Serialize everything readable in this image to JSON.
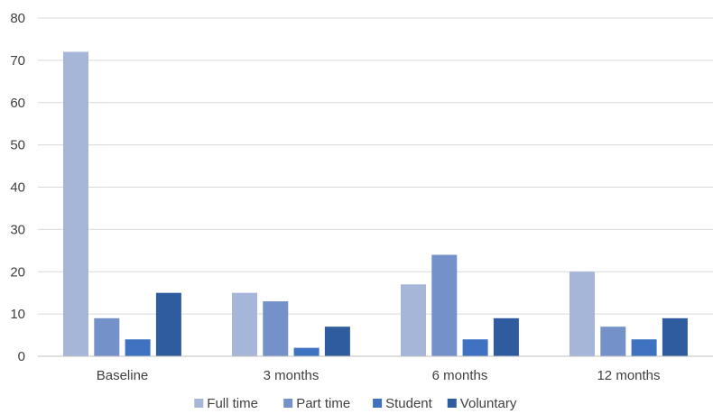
{
  "chart_data": {
    "type": "bar",
    "categories": [
      "Baseline",
      "3 months",
      "6 months",
      "12 months"
    ],
    "series": [
      {
        "name": "Full time",
        "values": [
          72,
          15,
          17,
          20
        ],
        "color": "#a5b6d9"
      },
      {
        "name": "Part time",
        "values": [
          9,
          13,
          24,
          7
        ],
        "color": "#7591c9"
      },
      {
        "name": "Student",
        "values": [
          4,
          2,
          4,
          4
        ],
        "color": "#3f72c0"
      },
      {
        "name": "Voluntary",
        "values": [
          15,
          7,
          9,
          9
        ],
        "color": "#2e5c9e"
      }
    ],
    "ylim": [
      0,
      80
    ],
    "yticks": [
      0,
      10,
      20,
      30,
      40,
      50,
      60,
      70,
      80
    ],
    "grid": true,
    "legend": "bottom"
  }
}
